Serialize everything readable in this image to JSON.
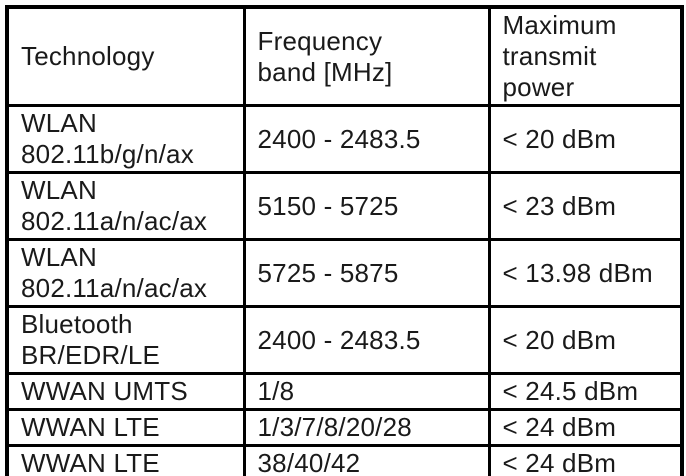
{
  "table": {
    "columns": [
      {
        "label": "Technology"
      },
      {
        "label": "Frequency\nband [MHz]"
      },
      {
        "label": "Maximum\ntransmit\npower"
      }
    ],
    "rows": [
      {
        "technology": "WLAN\n802.11b/g/n/ax",
        "band": "2400 - 2483.5",
        "power": "< 20 dBm"
      },
      {
        "technology": "WLAN\n802.11a/n/ac/ax",
        "band": "5150 - 5725",
        "power": "< 23 dBm"
      },
      {
        "technology": "WLAN\n802.11a/n/ac/ax",
        "band": "5725 - 5875",
        "power": "< 13.98 dBm"
      },
      {
        "technology": "Bluetooth\nBR/EDR/LE",
        "band": "2400 - 2483.5",
        "power": "< 20 dBm"
      },
      {
        "technology": "WWAN UMTS",
        "band": "1/8",
        "power": "< 24.5 dBm"
      },
      {
        "technology": "WWAN LTE",
        "band": "1/3/7/8/20/28",
        "power": "< 24 dBm"
      },
      {
        "technology": "WWAN LTE",
        "band": "38/40/42",
        "power": "< 24 dBm"
      }
    ],
    "colors": {
      "border": "#000000",
      "text": "#1a1a1a",
      "background": "#ffffff"
    }
  }
}
